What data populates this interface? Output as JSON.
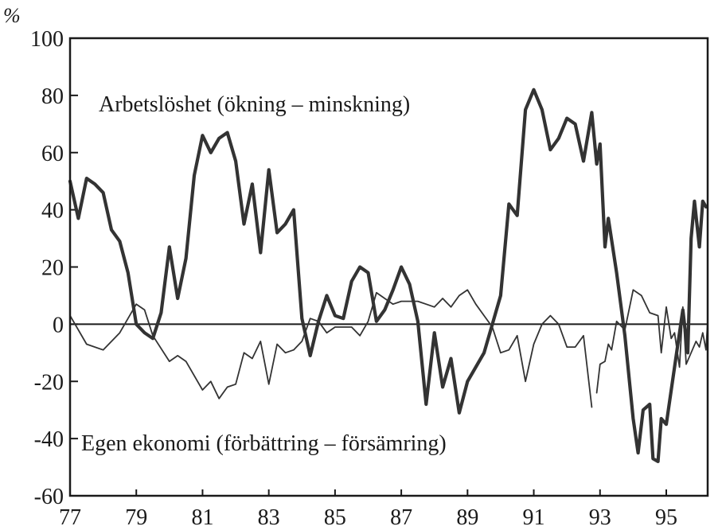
{
  "chart_data": {
    "type": "line",
    "y_unit": "%",
    "ylim": [
      -60,
      100
    ],
    "yticks": [
      100,
      80,
      60,
      40,
      20,
      0,
      -20,
      -40,
      -60
    ],
    "xlim": [
      1977,
      1996.25
    ],
    "xticks": [
      {
        "label": "77",
        "x": 1977
      },
      {
        "label": "79",
        "x": 1979
      },
      {
        "label": "81",
        "x": 1981
      },
      {
        "label": "83",
        "x": 1983
      },
      {
        "label": "85",
        "x": 1985
      },
      {
        "label": "87",
        "x": 1987
      },
      {
        "label": "89",
        "x": 1989
      },
      {
        "label": "91",
        "x": 1991
      },
      {
        "label": "93",
        "x": 1993
      },
      {
        "label": "95",
        "x": 1995
      }
    ],
    "zero_line": true,
    "grid": false,
    "series": [
      {
        "name": "Arbetslöshet (ökning – minskning)",
        "color": "#333333",
        "weight": "thick",
        "points": [
          [
            1977.0,
            50
          ],
          [
            1977.25,
            37
          ],
          [
            1977.5,
            51
          ],
          [
            1977.75,
            49
          ],
          [
            1978.0,
            46
          ],
          [
            1978.25,
            33
          ],
          [
            1978.5,
            29
          ],
          [
            1978.75,
            18
          ],
          [
            1979.0,
            0
          ],
          [
            1979.25,
            -3
          ],
          [
            1979.5,
            -5
          ],
          [
            1979.75,
            4
          ],
          [
            1980.0,
            27
          ],
          [
            1980.25,
            9
          ],
          [
            1980.5,
            23
          ],
          [
            1980.75,
            52
          ],
          [
            1981.0,
            66
          ],
          [
            1981.25,
            60
          ],
          [
            1981.5,
            65
          ],
          [
            1981.75,
            67
          ],
          [
            1982.0,
            57
          ],
          [
            1982.25,
            35
          ],
          [
            1982.5,
            49
          ],
          [
            1982.75,
            25
          ],
          [
            1983.0,
            54
          ],
          [
            1983.25,
            32
          ],
          [
            1983.5,
            35
          ],
          [
            1983.75,
            40
          ],
          [
            1984.0,
            2
          ],
          [
            1984.25,
            -11
          ],
          [
            1984.5,
            1
          ],
          [
            1984.75,
            10
          ],
          [
            1985.0,
            3
          ],
          [
            1985.25,
            2
          ],
          [
            1985.5,
            15
          ],
          [
            1985.75,
            20
          ],
          [
            1986.0,
            18
          ],
          [
            1986.25,
            1
          ],
          [
            1986.5,
            5
          ],
          [
            1986.75,
            12
          ],
          [
            1987.0,
            20
          ],
          [
            1987.25,
            14
          ],
          [
            1987.5,
            1
          ],
          [
            1987.75,
            -28
          ],
          [
            1988.0,
            -3
          ],
          [
            1988.25,
            -22
          ],
          [
            1988.5,
            -12
          ],
          [
            1988.75,
            -31
          ],
          [
            1989.0,
            -20
          ],
          [
            1989.25,
            -15
          ],
          [
            1989.5,
            -10
          ],
          [
            1989.75,
            0
          ],
          [
            1990.0,
            10
          ],
          [
            1990.25,
            42
          ],
          [
            1990.5,
            38
          ],
          [
            1990.75,
            75
          ],
          [
            1991.0,
            82
          ],
          [
            1991.25,
            75
          ],
          [
            1991.5,
            61
          ],
          [
            1991.75,
            65
          ],
          [
            1992.0,
            72
          ],
          [
            1992.25,
            70
          ],
          [
            1992.5,
            57
          ],
          [
            1992.75,
            74
          ],
          [
            1992.9,
            56
          ],
          [
            1993.0,
            63
          ],
          [
            1993.15,
            27
          ],
          [
            1993.25,
            37
          ],
          [
            1993.5,
            18
          ],
          [
            1993.75,
            -4
          ],
          [
            1994.0,
            -33
          ],
          [
            1994.15,
            -45
          ],
          [
            1994.3,
            -30
          ],
          [
            1994.5,
            -28
          ],
          [
            1994.6,
            -47
          ],
          [
            1994.75,
            -48
          ],
          [
            1994.85,
            -33
          ],
          [
            1995.0,
            -35
          ],
          [
            1995.25,
            -15
          ],
          [
            1995.5,
            5
          ],
          [
            1995.65,
            -10
          ],
          [
            1995.75,
            30
          ],
          [
            1995.85,
            43
          ],
          [
            1996.0,
            27
          ],
          [
            1996.1,
            43
          ],
          [
            1996.2,
            41
          ]
        ]
      },
      {
        "name": "Egen ekonomi (förbättring – försämring)",
        "color": "#333333",
        "weight": "thin",
        "segments": [
          [
            [
              1977.0,
              3
            ],
            [
              1977.5,
              -7
            ],
            [
              1978.0,
              -9
            ],
            [
              1978.5,
              -3
            ],
            [
              1979.0,
              7
            ],
            [
              1979.25,
              5
            ],
            [
              1979.5,
              -4
            ],
            [
              1980.0,
              -13
            ],
            [
              1980.25,
              -11
            ],
            [
              1980.5,
              -13
            ],
            [
              1981.0,
              -23
            ],
            [
              1981.25,
              -20
            ],
            [
              1981.5,
              -26
            ],
            [
              1981.75,
              -22
            ],
            [
              1982.0,
              -21
            ],
            [
              1982.25,
              -10
            ],
            [
              1982.5,
              -12
            ],
            [
              1982.75,
              -6
            ],
            [
              1983.0,
              -21
            ],
            [
              1983.25,
              -7
            ],
            [
              1983.5,
              -10
            ],
            [
              1983.75,
              -9
            ],
            [
              1984.0,
              -6
            ],
            [
              1984.25,
              2
            ],
            [
              1984.5,
              1
            ],
            [
              1984.75,
              -3
            ],
            [
              1985.0,
              -1
            ],
            [
              1985.5,
              -1
            ],
            [
              1985.75,
              -4
            ],
            [
              1986.0,
              1
            ],
            [
              1986.25,
              11
            ],
            [
              1986.5,
              9
            ],
            [
              1986.75,
              7
            ],
            [
              1987.0,
              8
            ],
            [
              1987.5,
              8
            ],
            [
              1987.75,
              7
            ],
            [
              1988.0,
              6
            ],
            [
              1988.25,
              9
            ],
            [
              1988.5,
              6
            ],
            [
              1988.75,
              10
            ],
            [
              1989.0,
              12
            ],
            [
              1989.25,
              7
            ],
            [
              1989.5,
              3
            ],
            [
              1989.75,
              -1
            ],
            [
              1990.0,
              -10
            ],
            [
              1990.25,
              -9
            ],
            [
              1990.5,
              -4
            ],
            [
              1990.75,
              -20
            ],
            [
              1991.0,
              -7
            ],
            [
              1991.25,
              0
            ],
            [
              1991.5,
              3
            ],
            [
              1991.75,
              0
            ],
            [
              1992.0,
              -8
            ],
            [
              1992.25,
              -8
            ],
            [
              1992.5,
              -4
            ],
            [
              1992.75,
              -29
            ]
          ],
          [
            [
              1992.9,
              -24
            ],
            [
              1993.0,
              -14
            ],
            [
              1993.15,
              -13
            ],
            [
              1993.25,
              -7
            ],
            [
              1993.35,
              -9
            ],
            [
              1993.5,
              1
            ],
            [
              1993.75,
              -2
            ],
            [
              1994.0,
              12
            ],
            [
              1994.25,
              10
            ],
            [
              1994.5,
              4
            ],
            [
              1994.75,
              3
            ],
            [
              1994.85,
              -10
            ],
            [
              1995.0,
              6
            ],
            [
              1995.15,
              -5
            ],
            [
              1995.25,
              -3
            ],
            [
              1995.4,
              -15
            ],
            [
              1995.5,
              6
            ],
            [
              1995.6,
              -14
            ],
            [
              1995.75,
              -10
            ],
            [
              1995.9,
              -6
            ],
            [
              1996.0,
              -8
            ],
            [
              1996.1,
              -3
            ],
            [
              1996.2,
              -9
            ],
            [
              1996.25,
              1
            ]
          ]
        ]
      }
    ]
  }
}
